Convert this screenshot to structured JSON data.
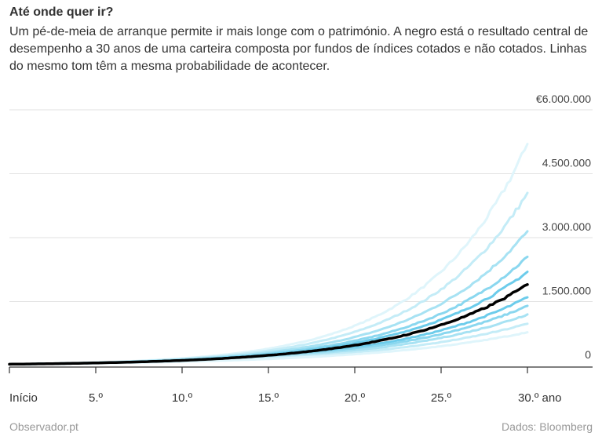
{
  "chart_data": {
    "type": "line",
    "title": "Até onde quer ir?",
    "subtitle": "Um pé-de-meia de arranque permite ir mais longe com o património. A negro está o resultado central de desempenho a 30 anos de uma carteira composta por fundos de índices cotados e não cotados. Linhas do mesmo tom têm a mesma probabilidade de acontecer.",
    "x_ticks": [
      "Início",
      "5.º",
      "10.º",
      "15.º",
      "20.º",
      "25.º",
      "30.º ano"
    ],
    "x_tick_values": [
      0,
      5,
      10,
      15,
      20,
      25,
      30
    ],
    "y_ticks": [
      "0",
      "1.500.000",
      "3.000.000",
      "4.500.000",
      "€6.000.000"
    ],
    "y_tick_values": [
      0,
      1500000,
      3000000,
      4500000,
      6000000
    ],
    "xlim": [
      0,
      30
    ],
    "ylim": [
      0,
      6000000
    ],
    "grid": true,
    "start_value": 30000,
    "series": [
      {
        "end_value": 5200000,
        "color": "#dff5fb",
        "width": 3,
        "highlight": false
      },
      {
        "end_value": 4050000,
        "color": "#c4ecf7",
        "width": 3,
        "highlight": false
      },
      {
        "end_value": 3150000,
        "color": "#a7e2f3",
        "width": 3,
        "highlight": false
      },
      {
        "end_value": 2550000,
        "color": "#8ad7ef",
        "width": 3,
        "highlight": false
      },
      {
        "end_value": 2200000,
        "color": "#6ccceb",
        "width": 3,
        "highlight": false
      },
      {
        "end_value": 1600000,
        "color": "#6ccceb",
        "width": 3,
        "highlight": false
      },
      {
        "end_value": 1400000,
        "color": "#8ad7ef",
        "width": 3,
        "highlight": false
      },
      {
        "end_value": 1200000,
        "color": "#a7e2f3",
        "width": 3,
        "highlight": false
      },
      {
        "end_value": 980000,
        "color": "#c4ecf7",
        "width": 3,
        "highlight": false
      },
      {
        "end_value": 780000,
        "color": "#dff5fb",
        "width": 3,
        "highlight": false
      },
      {
        "end_value": 1900000,
        "color": "#000000",
        "width": 3.5,
        "highlight": true
      }
    ]
  },
  "footer": {
    "source_left": "Observador.pt",
    "source_right": "Dados: Bloomberg"
  }
}
